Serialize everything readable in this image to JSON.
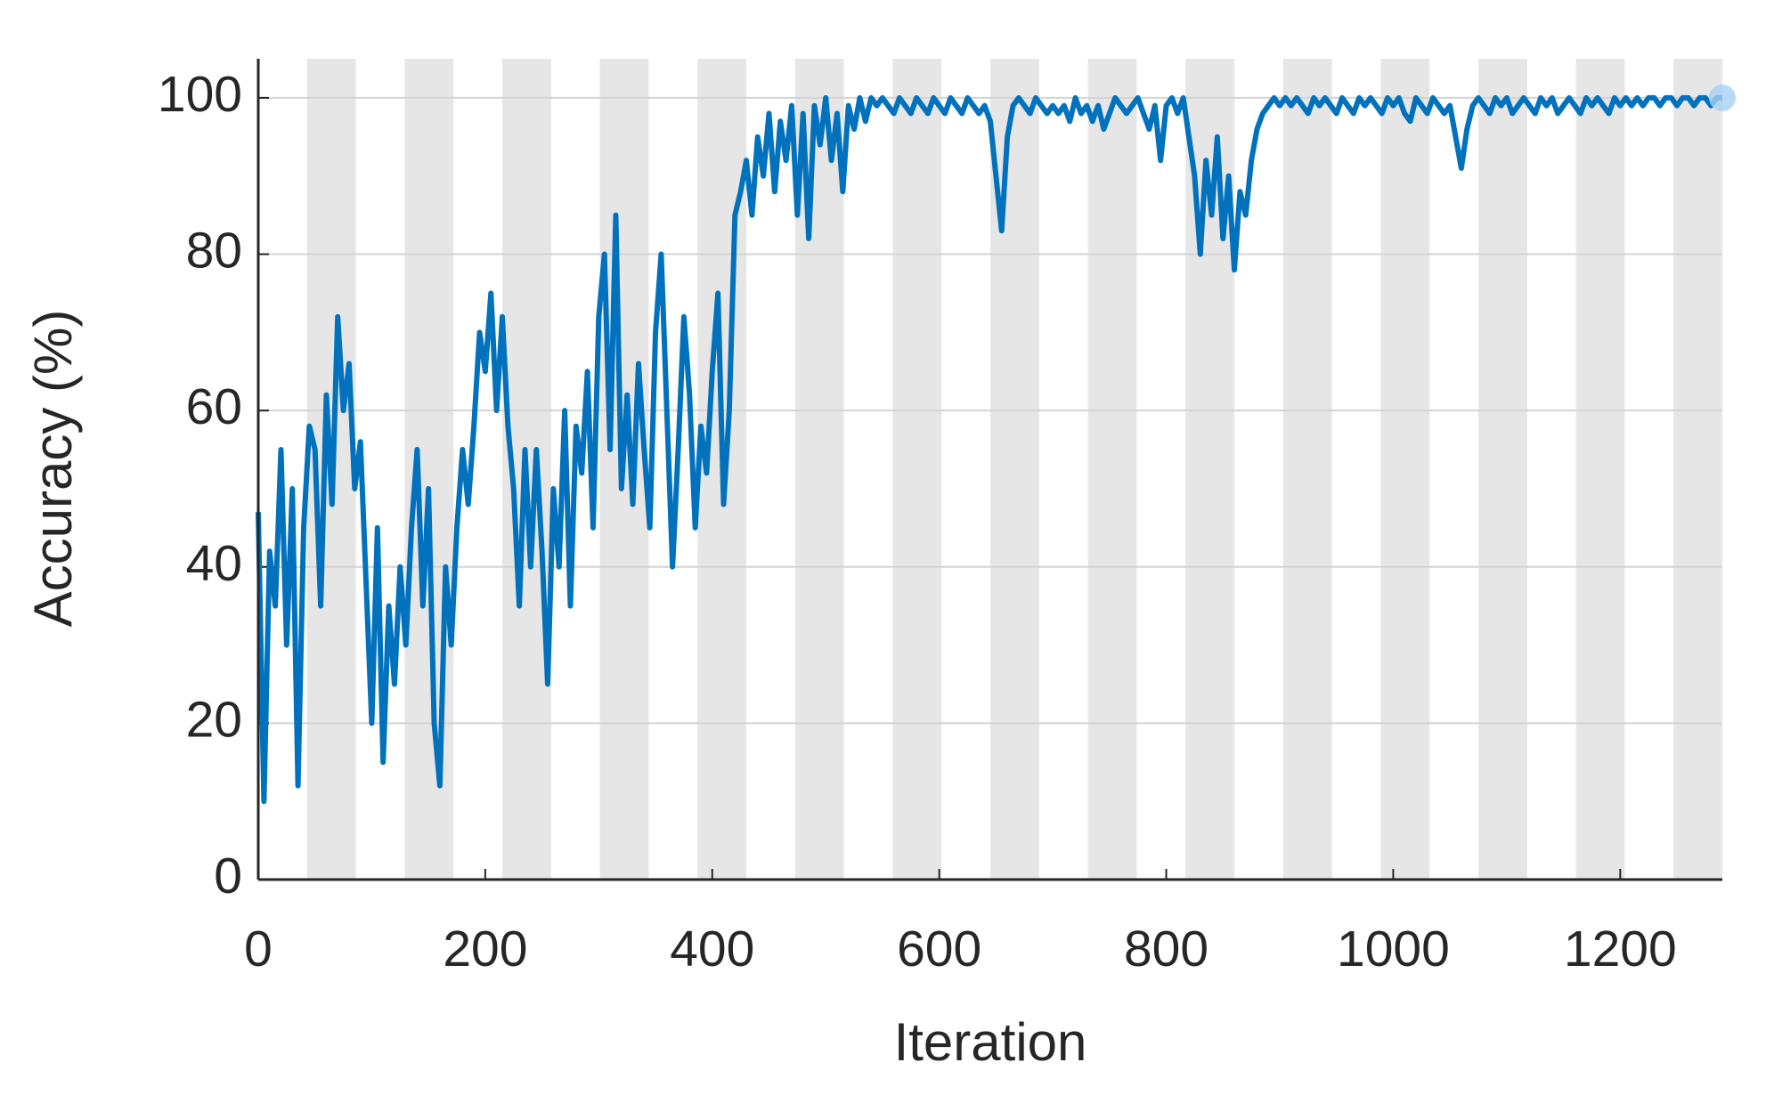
{
  "chart_data": {
    "type": "line",
    "xlabel": "Iteration",
    "ylabel": "Accuracy (%)",
    "xlim": [
      0,
      1290
    ],
    "ylim": [
      0,
      105
    ],
    "xticks": [
      0,
      200,
      400,
      600,
      800,
      1000,
      1200
    ],
    "yticks": [
      0,
      20,
      40,
      60,
      80,
      100
    ],
    "grid": true,
    "shaded_ranges": [
      [
        43,
        86
      ],
      [
        129,
        172
      ],
      [
        215,
        258
      ],
      [
        301,
        344
      ],
      [
        387,
        430
      ],
      [
        473,
        516
      ],
      [
        559,
        602
      ],
      [
        645,
        688
      ],
      [
        731,
        774
      ],
      [
        817,
        860
      ],
      [
        903,
        946
      ],
      [
        989,
        1032
      ],
      [
        1075,
        1118
      ],
      [
        1161,
        1204
      ],
      [
        1247,
        1290
      ]
    ],
    "shade_color": "#e6e6e6",
    "series": [
      {
        "color": "#0072bd",
        "x": [
          0,
          5,
          10,
          15,
          20,
          25,
          30,
          35,
          40,
          45,
          50,
          55,
          60,
          65,
          70,
          75,
          80,
          85,
          90,
          95,
          100,
          105,
          110,
          115,
          120,
          125,
          130,
          135,
          140,
          145,
          150,
          155,
          160,
          165,
          170,
          175,
          180,
          185,
          190,
          195,
          200,
          205,
          210,
          215,
          220,
          225,
          230,
          235,
          240,
          245,
          250,
          255,
          260,
          265,
          270,
          275,
          280,
          285,
          290,
          295,
          300,
          305,
          310,
          315,
          320,
          325,
          330,
          335,
          340,
          345,
          350,
          355,
          360,
          365,
          370,
          375,
          380,
          385,
          390,
          395,
          400,
          405,
          410,
          415,
          420,
          425,
          430,
          435,
          440,
          445,
          450,
          455,
          460,
          465,
          470,
          475,
          480,
          485,
          490,
          495,
          500,
          505,
          510,
          515,
          520,
          525,
          530,
          535,
          540,
          545,
          550,
          555,
          560,
          565,
          570,
          575,
          580,
          585,
          590,
          595,
          600,
          605,
          610,
          615,
          620,
          625,
          630,
          635,
          640,
          645,
          650,
          655,
          660,
          665,
          670,
          675,
          680,
          685,
          690,
          695,
          700,
          705,
          710,
          715,
          720,
          725,
          730,
          735,
          740,
          745,
          750,
          755,
          760,
          765,
          770,
          775,
          780,
          785,
          790,
          795,
          800,
          805,
          810,
          815,
          820,
          825,
          830,
          835,
          840,
          845,
          850,
          855,
          860,
          865,
          870,
          875,
          880,
          885,
          890,
          895,
          900,
          905,
          910,
          915,
          920,
          925,
          930,
          935,
          940,
          945,
          950,
          955,
          960,
          965,
          970,
          975,
          980,
          985,
          990,
          995,
          1000,
          1005,
          1010,
          1015,
          1020,
          1025,
          1030,
          1035,
          1040,
          1045,
          1050,
          1055,
          1060,
          1065,
          1070,
          1075,
          1080,
          1085,
          1090,
          1095,
          1100,
          1105,
          1110,
          1115,
          1120,
          1125,
          1130,
          1135,
          1140,
          1145,
          1150,
          1155,
          1160,
          1165,
          1170,
          1175,
          1180,
          1185,
          1190,
          1195,
          1200,
          1205,
          1210,
          1215,
          1220,
          1225,
          1230,
          1235,
          1240,
          1245,
          1250,
          1255,
          1260,
          1265,
          1270,
          1275,
          1280,
          1285,
          1290
        ],
        "values": [
          47,
          10,
          42,
          35,
          55,
          30,
          50,
          12,
          45,
          58,
          55,
          35,
          62,
          48,
          72,
          60,
          66,
          50,
          56,
          38,
          20,
          45,
          15,
          35,
          25,
          40,
          30,
          45,
          55,
          35,
          50,
          20,
          12,
          40,
          30,
          45,
          55,
          48,
          58,
          70,
          65,
          75,
          60,
          72,
          58,
          50,
          35,
          55,
          40,
          55,
          42,
          25,
          50,
          40,
          60,
          35,
          58,
          52,
          65,
          45,
          72,
          80,
          55,
          85,
          50,
          62,
          48,
          66,
          55,
          45,
          70,
          80,
          60,
          40,
          55,
          72,
          62,
          45,
          58,
          52,
          65,
          75,
          48,
          60,
          85,
          88,
          92,
          85,
          95,
          90,
          98,
          88,
          97,
          92,
          99,
          85,
          98,
          82,
          99,
          94,
          100,
          92,
          98,
          88,
          99,
          96,
          100,
          97,
          100,
          99,
          100,
          99,
          98,
          100,
          99,
          98,
          100,
          99,
          98,
          100,
          99,
          98,
          100,
          99,
          98,
          100,
          99,
          98,
          99,
          97,
          90,
          83,
          95,
          99,
          100,
          99,
          98,
          100,
          99,
          98,
          99,
          98,
          99,
          97,
          100,
          98,
          99,
          97,
          99,
          96,
          98,
          100,
          99,
          98,
          99,
          100,
          98,
          96,
          99,
          92,
          99,
          100,
          98,
          100,
          95,
          90,
          80,
          92,
          85,
          95,
          82,
          90,
          78,
          88,
          85,
          92,
          96,
          98,
          99,
          100,
          99,
          100,
          99,
          100,
          99,
          98,
          100,
          99,
          100,
          99,
          98,
          100,
          99,
          98,
          100,
          99,
          100,
          99,
          98,
          100,
          99,
          100,
          98,
          97,
          100,
          99,
          98,
          100,
          99,
          98,
          99,
          95,
          91,
          96,
          99,
          100,
          99,
          98,
          100,
          99,
          100,
          98,
          99,
          100,
          99,
          98,
          100,
          99,
          100,
          98,
          99,
          100,
          99,
          98,
          100,
          99,
          100,
          99,
          98,
          100,
          99,
          100,
          99,
          100,
          99,
          100,
          100,
          99,
          100,
          100,
          99,
          100,
          100,
          99,
          100,
          100,
          99,
          100,
          100
        ]
      }
    ]
  }
}
